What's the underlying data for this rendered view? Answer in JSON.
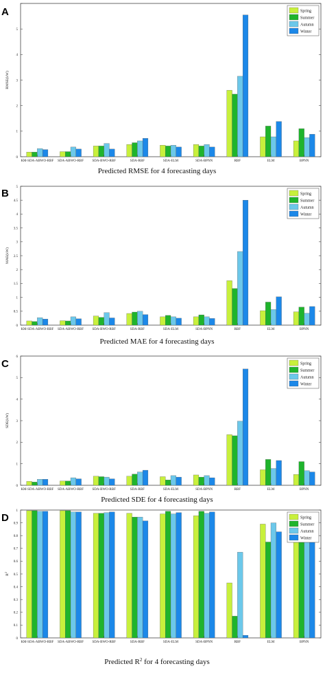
{
  "colors": {
    "Spring": "#c8f03c",
    "Summer": "#1fb42c",
    "Autumn": "#6cc8ea",
    "Winter": "#1c88e8"
  },
  "chart_data": [
    {
      "type": "bar",
      "panel": "A",
      "caption": "Predicted RMSE for 4 forecasting days",
      "ylabel": "RMSE(kW)",
      "ylim": [
        0,
        6
      ],
      "yticks": [
        0,
        1,
        2,
        3,
        4,
        5,
        6
      ],
      "yticklabels": [
        "0",
        "1",
        "2",
        "3",
        "4",
        "5",
        ""
      ],
      "legend": "top-right",
      "categories": [
        "KM-SDA-ABWO-RBF",
        "SDA-ABWO-RBF",
        "SDA-BWO-RBF",
        "SDA-RBF",
        "SDA-ELM",
        "SDA-BPNN",
        "RBF",
        "ELM",
        "BPNN"
      ],
      "series": [
        {
          "name": "Spring",
          "values": [
            0.18,
            0.2,
            0.42,
            0.48,
            0.45,
            0.48,
            2.6,
            0.78,
            0.62
          ]
        },
        {
          "name": "Summer",
          "values": [
            0.18,
            0.2,
            0.42,
            0.55,
            0.42,
            0.42,
            2.45,
            1.2,
            1.1
          ]
        },
        {
          "name": "Autumn",
          "values": [
            0.32,
            0.38,
            0.52,
            0.62,
            0.45,
            0.48,
            3.15,
            0.78,
            0.75
          ]
        },
        {
          "name": "Winter",
          "values": [
            0.28,
            0.3,
            0.3,
            0.72,
            0.38,
            0.38,
            5.55,
            1.38,
            0.88
          ]
        }
      ]
    },
    {
      "type": "bar",
      "panel": "B",
      "caption": "Predicted MAE for 4 forecasting days",
      "ylabel": "MAE(kW)",
      "ylim": [
        0,
        5
      ],
      "yticks": [
        0,
        0.5,
        1,
        1.5,
        2,
        2.5,
        3,
        3.5,
        4,
        4.5,
        5
      ],
      "yticklabels": [
        "0",
        "0.5",
        "1",
        "1.5",
        "2",
        "2.5",
        "3",
        "3.5",
        "4",
        "4.5",
        "5"
      ],
      "legend": "top-right",
      "categories": [
        "KM-SDA-ABWO-RBF",
        "SDA-ABWO-RBF",
        "SDA-BWO-RBF",
        "SDA-RBF",
        "SDA-ELM",
        "SDA-BPNN",
        "RBF",
        "ELM",
        "BPNN"
      ],
      "series": [
        {
          "name": "Spring",
          "values": [
            0.15,
            0.16,
            0.33,
            0.42,
            0.3,
            0.3,
            1.6,
            0.52,
            0.48
          ]
        },
        {
          "name": "Summer",
          "values": [
            0.13,
            0.15,
            0.28,
            0.47,
            0.35,
            0.37,
            1.32,
            0.83,
            0.65
          ]
        },
        {
          "name": "Autumn",
          "values": [
            0.27,
            0.3,
            0.45,
            0.5,
            0.3,
            0.3,
            2.65,
            0.56,
            0.43
          ]
        },
        {
          "name": "Winter",
          "values": [
            0.22,
            0.23,
            0.26,
            0.38,
            0.25,
            0.24,
            4.5,
            1.02,
            0.67
          ]
        }
      ]
    },
    {
      "type": "bar",
      "panel": "C",
      "caption": "Predicted SDE for 4 forecasting days",
      "ylabel": "SDE(kW)",
      "ylim": [
        0,
        6
      ],
      "yticks": [
        0,
        1,
        2,
        3,
        4,
        5,
        6
      ],
      "yticklabels": [
        "0",
        "1",
        "2",
        "3",
        "4",
        "5",
        "6"
      ],
      "legend": "top-right",
      "categories": [
        "KM-SDA-ABWO-RBF",
        "SDA-ABWO-RBF",
        "SDA-BWO-RBF",
        "SDA-RBF",
        "SDA-ELM",
        "SDA-BPNN",
        "RBF",
        "ELM",
        "BPNN"
      ],
      "series": [
        {
          "name": "Spring",
          "values": [
            0.18,
            0.2,
            0.42,
            0.42,
            0.4,
            0.48,
            2.35,
            0.72,
            0.5
          ]
        },
        {
          "name": "Summer",
          "values": [
            0.15,
            0.2,
            0.4,
            0.52,
            0.25,
            0.38,
            2.3,
            1.2,
            1.1
          ]
        },
        {
          "name": "Autumn",
          "values": [
            0.28,
            0.35,
            0.38,
            0.62,
            0.45,
            0.45,
            2.98,
            0.78,
            0.68
          ]
        },
        {
          "name": "Winter",
          "values": [
            0.28,
            0.3,
            0.3,
            0.7,
            0.38,
            0.35,
            5.4,
            1.15,
            0.62
          ]
        }
      ]
    },
    {
      "type": "bar",
      "panel": "D",
      "caption": "Predicted R2 for 4 forecasting days",
      "ylabel": "R2",
      "ylim": [
        0,
        1
      ],
      "yticks": [
        0,
        0.1,
        0.2,
        0.3,
        0.4,
        0.5,
        0.6,
        0.7,
        0.8,
        0.9,
        1
      ],
      "yticklabels": [
        "0",
        "0.1",
        "0.2",
        "0.3",
        "0.4",
        "0.5",
        "0.6",
        "0.7",
        "0.8",
        "0.9",
        "1"
      ],
      "legend": "top-right",
      "categories": [
        "KM-SDA-ABWO-RBF",
        "SDA-ABWO-RBF",
        "SDA-BWO-RBF",
        "SDA-RBF",
        "SDA-ELM",
        "SDA-BPNN",
        "RBF",
        "ELM",
        "BPNN"
      ],
      "series": [
        {
          "name": "Spring",
          "values": [
            0.995,
            0.995,
            0.975,
            0.975,
            0.97,
            0.955,
            0.43,
            0.89,
            0.87
          ]
        },
        {
          "name": "Summer",
          "values": [
            0.995,
            0.995,
            0.975,
            0.945,
            0.99,
            0.99,
            0.17,
            0.75,
            0.76
          ]
        },
        {
          "name": "Autumn",
          "values": [
            0.99,
            0.985,
            0.98,
            0.945,
            0.97,
            0.975,
            0.67,
            0.9,
            0.87
          ]
        },
        {
          "name": "Winter",
          "values": [
            0.99,
            0.985,
            0.985,
            0.915,
            0.98,
            0.985,
            0.02,
            0.83,
            0.9
          ]
        }
      ]
    }
  ]
}
